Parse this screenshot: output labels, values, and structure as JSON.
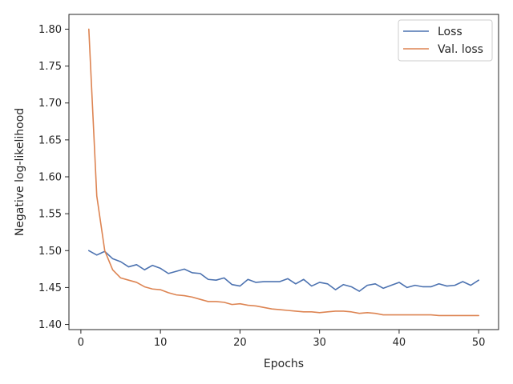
{
  "chart_data": {
    "type": "line",
    "title": "",
    "xlabel": "Epochs",
    "ylabel": "Negative log-likelihood",
    "xlim": [
      -1.5,
      52.5
    ],
    "ylim": [
      1.393,
      1.82
    ],
    "xticks": [
      0,
      10,
      20,
      30,
      40,
      50
    ],
    "yticks": [
      1.4,
      1.45,
      1.5,
      1.55,
      1.6,
      1.65,
      1.7,
      1.75,
      1.8
    ],
    "xtick_labels": [
      "0",
      "10",
      "20",
      "30",
      "40",
      "50"
    ],
    "ytick_labels": [
      "1.40",
      "1.45",
      "1.50",
      "1.55",
      "1.60",
      "1.65",
      "1.70",
      "1.75",
      "1.80"
    ],
    "grid": false,
    "legend_position": "top-right",
    "x": [
      1,
      2,
      3,
      4,
      5,
      6,
      7,
      8,
      9,
      10,
      11,
      12,
      13,
      14,
      15,
      16,
      17,
      18,
      19,
      20,
      21,
      22,
      23,
      24,
      25,
      26,
      27,
      28,
      29,
      30,
      31,
      32,
      33,
      34,
      35,
      36,
      37,
      38,
      39,
      40,
      41,
      42,
      43,
      44,
      45,
      46,
      47,
      48,
      49,
      50
    ],
    "series": [
      {
        "name": "Loss",
        "color": "#4c72b0",
        "values": [
          1.5,
          1.494,
          1.499,
          1.489,
          1.485,
          1.478,
          1.481,
          1.474,
          1.48,
          1.476,
          1.469,
          1.472,
          1.475,
          1.47,
          1.469,
          1.461,
          1.46,
          1.463,
          1.454,
          1.452,
          1.461,
          1.457,
          1.458,
          1.458,
          1.458,
          1.462,
          1.455,
          1.461,
          1.452,
          1.457,
          1.455,
          1.447,
          1.454,
          1.451,
          1.445,
          1.453,
          1.455,
          1.449,
          1.453,
          1.457,
          1.45,
          1.453,
          1.451,
          1.451,
          1.455,
          1.452,
          1.453,
          1.458,
          1.453,
          1.46
        ]
      },
      {
        "name": "Val. loss",
        "color": "#dd8452",
        "values": [
          1.8,
          1.574,
          1.5,
          1.474,
          1.463,
          1.46,
          1.457,
          1.451,
          1.448,
          1.447,
          1.443,
          1.44,
          1.439,
          1.437,
          1.434,
          1.431,
          1.431,
          1.43,
          1.427,
          1.428,
          1.426,
          1.425,
          1.423,
          1.421,
          1.42,
          1.419,
          1.418,
          1.417,
          1.417,
          1.416,
          1.417,
          1.418,
          1.418,
          1.417,
          1.415,
          1.416,
          1.415,
          1.413,
          1.413,
          1.413,
          1.413,
          1.413,
          1.413,
          1.413,
          1.412,
          1.412,
          1.412,
          1.412,
          1.412,
          1.412
        ]
      }
    ]
  }
}
